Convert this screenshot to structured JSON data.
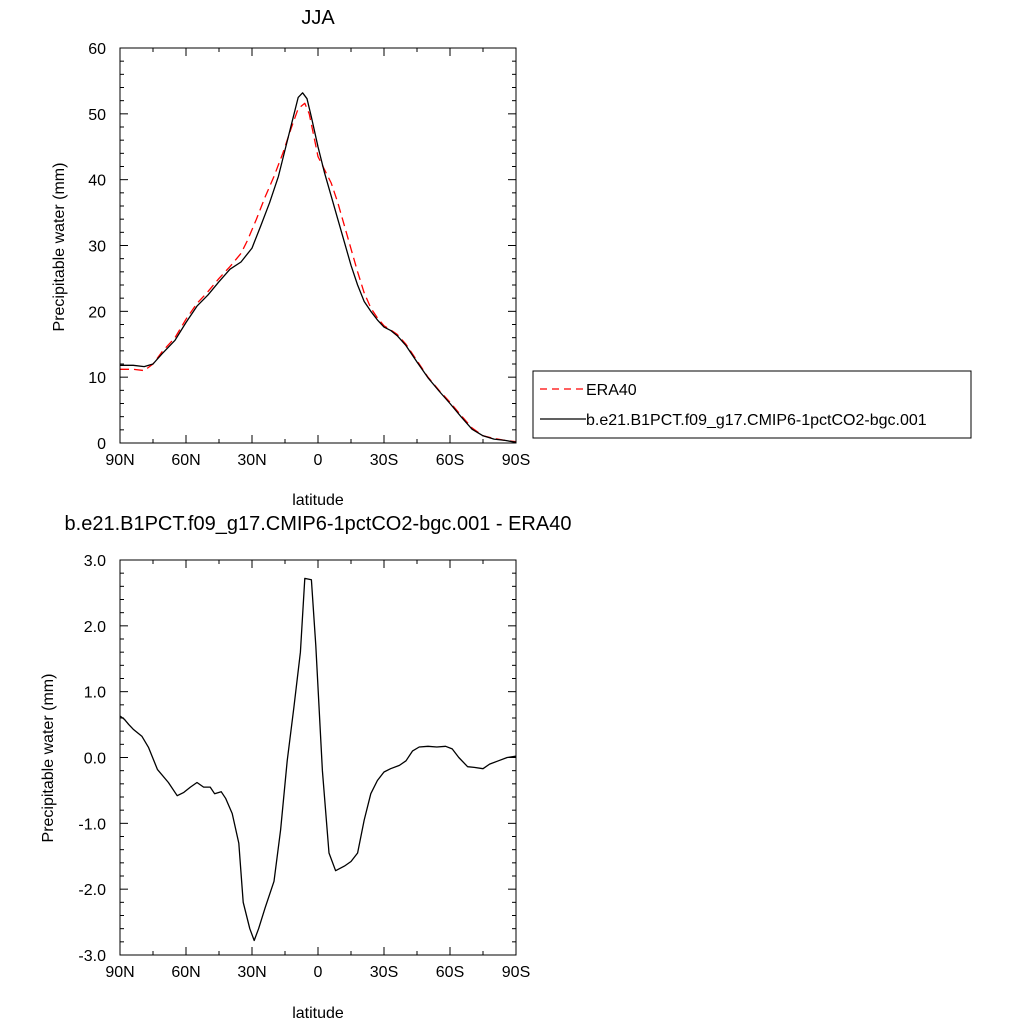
{
  "chart_data": [
    {
      "type": "line",
      "title": "JJA",
      "xlabel": "latitude",
      "ylabel": "Precipitable water (mm)",
      "x_direction": "north-to-south",
      "xlim": [
        90,
        -90
      ],
      "ylim": [
        0,
        60
      ],
      "xticks": [
        {
          "value": 90,
          "label": "90N"
        },
        {
          "value": 60,
          "label": "60N"
        },
        {
          "value": 30,
          "label": "30N"
        },
        {
          "value": 0,
          "label": "0"
        },
        {
          "value": -30,
          "label": "30S"
        },
        {
          "value": -60,
          "label": "60S"
        },
        {
          "value": -90,
          "label": "90S"
        }
      ],
      "yticks": [
        {
          "value": 0,
          "label": "0"
        },
        {
          "value": 10,
          "label": "10"
        },
        {
          "value": 20,
          "label": "20"
        },
        {
          "value": 30,
          "label": "30"
        },
        {
          "value": 40,
          "label": "40"
        },
        {
          "value": 50,
          "label": "50"
        },
        {
          "value": 60,
          "label": "60"
        }
      ],
      "legend_position": "right",
      "series": [
        {
          "name": "ERA40",
          "color": "#ff0000",
          "dash": "dashed",
          "points": [
            [
              90,
              11.2
            ],
            [
              84,
              11.2
            ],
            [
              79,
              11.0
            ],
            [
              75,
              12.0
            ],
            [
              71,
              13.8
            ],
            [
              65,
              16.0
            ],
            [
              60,
              18.8
            ],
            [
              55,
              21.2
            ],
            [
              50,
              23.0
            ],
            [
              45,
              25.0
            ],
            [
              40,
              26.8
            ],
            [
              35,
              28.8
            ],
            [
              32,
              30.8
            ],
            [
              28,
              34.0
            ],
            [
              24,
              37.4
            ],
            [
              20,
              40.5
            ],
            [
              16,
              44.0
            ],
            [
              12,
              48.0
            ],
            [
              9,
              50.8
            ],
            [
              6,
              51.6
            ],
            [
              4,
              50.0
            ],
            [
              2,
              46.8
            ],
            [
              0,
              43.5
            ],
            [
              -3,
              41.5
            ],
            [
              -6,
              39.5
            ],
            [
              -9,
              36.5
            ],
            [
              -12,
              33.0
            ],
            [
              -15,
              29.5
            ],
            [
              -18,
              26.0
            ],
            [
              -21,
              22.8
            ],
            [
              -24,
              20.5
            ],
            [
              -27,
              19.0
            ],
            [
              -30,
              17.8
            ],
            [
              -33,
              17.2
            ],
            [
              -36,
              16.5
            ],
            [
              -40,
              15.0
            ],
            [
              -45,
              12.5
            ],
            [
              -50,
              10.0
            ],
            [
              -55,
              8.0
            ],
            [
              -60,
              6.2
            ],
            [
              -65,
              4.2
            ],
            [
              -70,
              2.3
            ],
            [
              -75,
              1.1
            ],
            [
              -80,
              0.7
            ],
            [
              -85,
              0.4
            ],
            [
              -90,
              0.2
            ]
          ]
        },
        {
          "name": "b.e21.B1PCT.f09_g17.CMIP6-1pctCO2-bgc.001",
          "color": "#000000",
          "dash": "solid",
          "points": [
            [
              90,
              11.8
            ],
            [
              84,
              11.8
            ],
            [
              79,
              11.6
            ],
            [
              75,
              12.0
            ],
            [
              71,
              13.5
            ],
            [
              65,
              15.6
            ],
            [
              60,
              18.3
            ],
            [
              55,
              20.8
            ],
            [
              50,
              22.5
            ],
            [
              45,
              24.5
            ],
            [
              40,
              26.4
            ],
            [
              35,
              27.5
            ],
            [
              30,
              29.6
            ],
            [
              26,
              33.0
            ],
            [
              22,
              36.5
            ],
            [
              18,
              40.5
            ],
            [
              15,
              44.5
            ],
            [
              12,
              48.5
            ],
            [
              9,
              52.5
            ],
            [
              7,
              53.2
            ],
            [
              5,
              52.3
            ],
            [
              3,
              49.5
            ],
            [
              0,
              45.0
            ],
            [
              -3,
              41.0
            ],
            [
              -6,
              37.5
            ],
            [
              -9,
              34.0
            ],
            [
              -12,
              30.5
            ],
            [
              -15,
              27.0
            ],
            [
              -18,
              24.0
            ],
            [
              -21,
              21.5
            ],
            [
              -24,
              20.0
            ],
            [
              -27,
              18.7
            ],
            [
              -30,
              17.6
            ],
            [
              -33,
              17.1
            ],
            [
              -36,
              16.3
            ],
            [
              -40,
              14.8
            ],
            [
              -45,
              12.3
            ],
            [
              -50,
              9.9
            ],
            [
              -55,
              7.9
            ],
            [
              -60,
              6.0
            ],
            [
              -65,
              4.0
            ],
            [
              -70,
              2.1
            ],
            [
              -75,
              1.1
            ],
            [
              -80,
              0.6
            ],
            [
              -85,
              0.4
            ],
            [
              -90,
              0.1
            ]
          ]
        }
      ]
    },
    {
      "type": "line",
      "title": "b.e21.B1PCT.f09_g17.CMIP6-1pctCO2-bgc.001 - ERA40",
      "xlabel": "latitude",
      "ylabel": "Precipitable water (mm)",
      "x_direction": "north-to-south",
      "xlim": [
        90,
        -90
      ],
      "ylim": [
        -3.0,
        3.0
      ],
      "xticks": [
        {
          "value": 90,
          "label": "90N"
        },
        {
          "value": 60,
          "label": "60N"
        },
        {
          "value": 30,
          "label": "30N"
        },
        {
          "value": 0,
          "label": "0"
        },
        {
          "value": -30,
          "label": "30S"
        },
        {
          "value": -60,
          "label": "60S"
        },
        {
          "value": -90,
          "label": "90S"
        }
      ],
      "yticks": [
        {
          "value": -3.0,
          "label": "-3.0"
        },
        {
          "value": -2.0,
          "label": "-2.0"
        },
        {
          "value": -1.0,
          "label": "-1.0"
        },
        {
          "value": 0.0,
          "label": "0.0"
        },
        {
          "value": 1.0,
          "label": "1.0"
        },
        {
          "value": 2.0,
          "label": "2.0"
        },
        {
          "value": 3.0,
          "label": "3.0"
        }
      ],
      "series": [
        {
          "color": "#000000",
          "dash": "solid",
          "points": [
            [
              90,
              0.63
            ],
            [
              88,
              0.58
            ],
            [
              86,
              0.5
            ],
            [
              84,
              0.43
            ],
            [
              80,
              0.32
            ],
            [
              77,
              0.15
            ],
            [
              73,
              -0.18
            ],
            [
              68,
              -0.38
            ],
            [
              64,
              -0.58
            ],
            [
              61,
              -0.53
            ],
            [
              58,
              -0.45
            ],
            [
              55,
              -0.38
            ],
            [
              52,
              -0.45
            ],
            [
              49,
              -0.45
            ],
            [
              47,
              -0.55
            ],
            [
              44,
              -0.52
            ],
            [
              42,
              -0.62
            ],
            [
              39,
              -0.85
            ],
            [
              36,
              -1.3
            ],
            [
              34,
              -2.2
            ],
            [
              31,
              -2.6
            ],
            [
              29,
              -2.78
            ],
            [
              27,
              -2.6
            ],
            [
              24,
              -2.28
            ],
            [
              20,
              -1.88
            ],
            [
              17,
              -1.1
            ],
            [
              14,
              -0.05
            ],
            [
              11,
              0.75
            ],
            [
              8,
              1.6
            ],
            [
              6,
              2.72
            ],
            [
              3,
              2.7
            ],
            [
              1,
              1.7
            ],
            [
              -2,
              -0.2
            ],
            [
              -5,
              -1.45
            ],
            [
              -8,
              -1.72
            ],
            [
              -12,
              -1.65
            ],
            [
              -15,
              -1.58
            ],
            [
              -18,
              -1.45
            ],
            [
              -21,
              -0.95
            ],
            [
              -24,
              -0.55
            ],
            [
              -27,
              -0.35
            ],
            [
              -30,
              -0.22
            ],
            [
              -33,
              -0.17
            ],
            [
              -37,
              -0.12
            ],
            [
              -40,
              -0.05
            ],
            [
              -43,
              0.1
            ],
            [
              -46,
              0.16
            ],
            [
              -50,
              0.17
            ],
            [
              -54,
              0.16
            ],
            [
              -58,
              0.17
            ],
            [
              -61,
              0.13
            ],
            [
              -64,
              0.0
            ],
            [
              -68,
              -0.14
            ],
            [
              -71,
              -0.15
            ],
            [
              -75,
              -0.17
            ],
            [
              -78,
              -0.1
            ],
            [
              -82,
              -0.05
            ],
            [
              -86,
              0.0
            ],
            [
              -90,
              0.02
            ]
          ]
        }
      ]
    }
  ]
}
